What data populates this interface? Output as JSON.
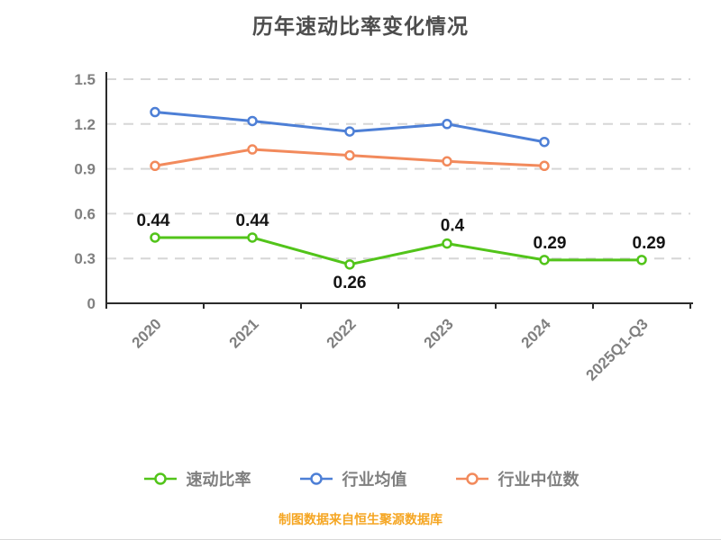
{
  "title": "历年速动比率变化情况",
  "footer": "制图数据来自恒生聚源数据库",
  "colors": {
    "title_text": "#4d4d4d",
    "axis_line": "#2b2b2b",
    "tick_label": "#808080",
    "grid_line": "#d6d6d6",
    "data_label": "#141414",
    "footer_text": "#f5a623"
  },
  "chart_data": {
    "type": "line",
    "title": "历年速动比率变化情况",
    "categories": [
      "2020",
      "2021",
      "2022",
      "2023",
      "2024",
      "2025Q1-Q3"
    ],
    "series": [
      {
        "name": "速动比率",
        "color": "#52c41a",
        "values": [
          0.44,
          0.44,
          0.26,
          0.4,
          0.29,
          0.29
        ],
        "point_labels": [
          "0.44",
          "0.44",
          "0.26",
          "0.4",
          "0.29",
          "0.29"
        ]
      },
      {
        "name": "行业均值",
        "color": "#4d7fd6",
        "values": [
          1.28,
          1.22,
          1.15,
          1.2,
          1.08,
          null
        ],
        "point_labels": []
      },
      {
        "name": "行业中位数",
        "color": "#f28a5c",
        "values": [
          0.92,
          1.03,
          0.99,
          0.95,
          0.92,
          null
        ],
        "point_labels": []
      }
    ],
    "ylim": [
      0,
      1.5
    ],
    "yticks": [
      0,
      0.3,
      0.6,
      0.9,
      1.2,
      1.5
    ],
    "ytick_labels": [
      "0",
      "0.3",
      "0.6",
      "0.9",
      "1.2",
      "1.5"
    ],
    "grid": "horizontal-dashed",
    "legend_position": "bottom",
    "x_label_rotation": -45
  }
}
